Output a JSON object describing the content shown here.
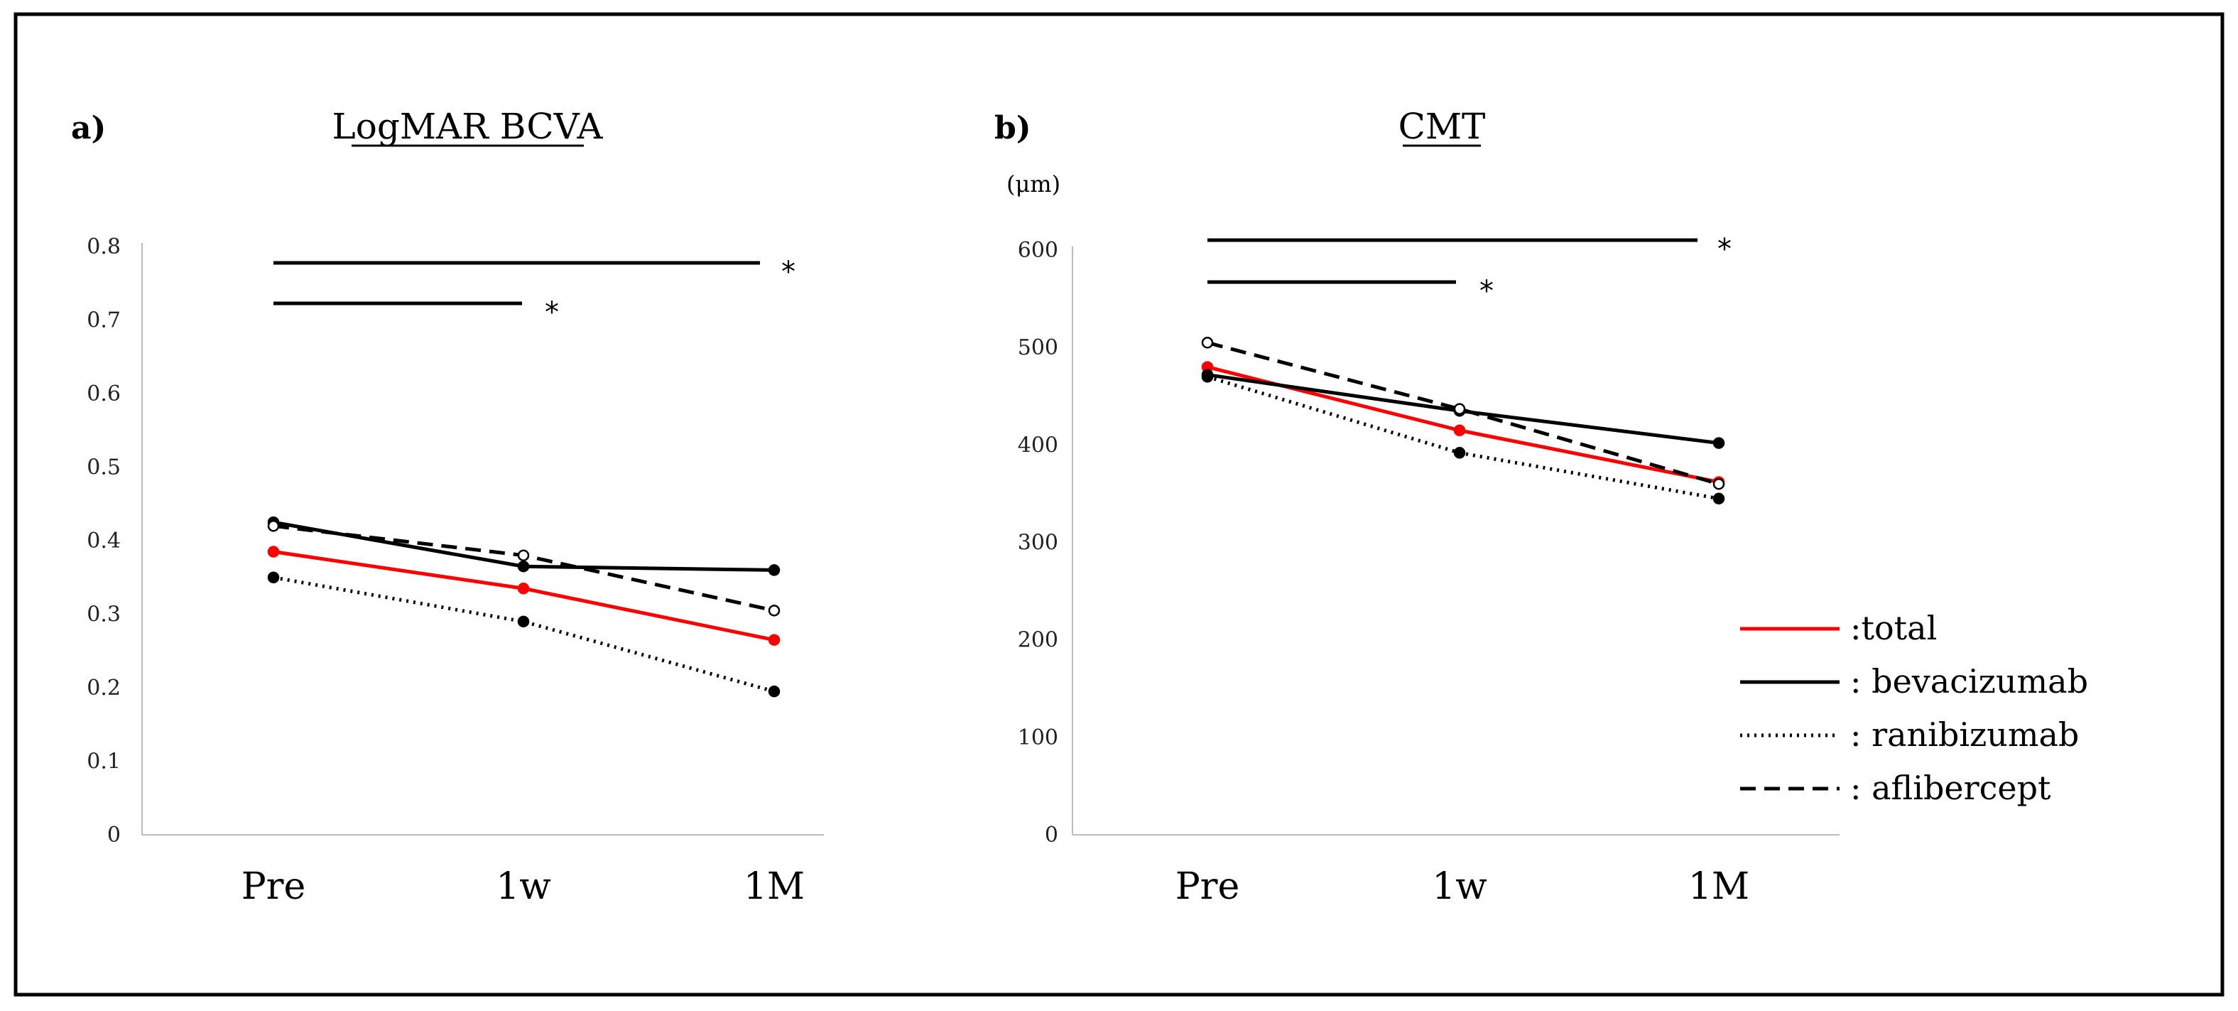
{
  "chart_data": [
    {
      "panel": "a)",
      "type": "line",
      "title": "LogMAR BCVA",
      "ylabel": "",
      "ylim": [
        0,
        0.8
      ],
      "yticks": [
        "0",
        "0.1",
        "0.2",
        "0.3",
        "0.4",
        "0.5",
        "0.6",
        "0.7",
        "0.8"
      ],
      "categories": [
        "Pre",
        "1w",
        "1M"
      ],
      "series": [
        {
          "name": "total",
          "values": [
            0.385,
            0.335,
            0.265
          ]
        },
        {
          "name": "bevacizumab",
          "values": [
            0.425,
            0.365,
            0.36
          ]
        },
        {
          "name": "ranibizumab",
          "values": [
            0.35,
            0.29,
            0.195
          ]
        },
        {
          "name": "aflibercept",
          "values": [
            0.42,
            0.38,
            0.305
          ]
        }
      ],
      "significance": [
        {
          "from": "Pre",
          "to": "1M",
          "label": "*"
        },
        {
          "from": "Pre",
          "to": "1w",
          "label": "*"
        }
      ]
    },
    {
      "panel": "b)",
      "type": "line",
      "title": "CMT",
      "ylabel": "(μm)",
      "ylim": [
        0,
        600
      ],
      "yticks": [
        "0",
        "100",
        "200",
        "300",
        "400",
        "500",
        "600"
      ],
      "categories": [
        "Pre",
        "1w",
        "1M"
      ],
      "series": [
        {
          "name": "total",
          "values": [
            480,
            415,
            362
          ]
        },
        {
          "name": "bevacizumab",
          "values": [
            472,
            435,
            402
          ]
        },
        {
          "name": "ranibizumab",
          "values": [
            470,
            392,
            345
          ]
        },
        {
          "name": "aflibercept",
          "values": [
            505,
            437,
            360
          ]
        }
      ],
      "significance": [
        {
          "from": "Pre",
          "to": "1M",
          "label": "*"
        },
        {
          "from": "Pre",
          "to": "1w",
          "label": "*"
        }
      ]
    }
  ],
  "legend": [
    {
      "name": "total",
      "label": ":total"
    },
    {
      "name": "bevacizumab",
      "label": ": bevacizumab"
    },
    {
      "name": "ranibizumab",
      "label": ": ranibizumab"
    },
    {
      "name": "aflibercept",
      "label": ": aflibercept"
    }
  ],
  "styles": {
    "total": {
      "color": "#ff0000",
      "dash": "",
      "marker": "#ff0000",
      "markerFill": "#ff0000"
    },
    "bevacizumab": {
      "color": "#000000",
      "dash": "",
      "marker": "#000000",
      "markerFill": "#000000"
    },
    "ranibizumab": {
      "color": "#000000",
      "dash": "3 7",
      "marker": "#000000",
      "markerFill": "#000000"
    },
    "aflibercept": {
      "color": "#000000",
      "dash": "22 12",
      "marker": "#000000",
      "markerFill": "#ffffff"
    }
  }
}
